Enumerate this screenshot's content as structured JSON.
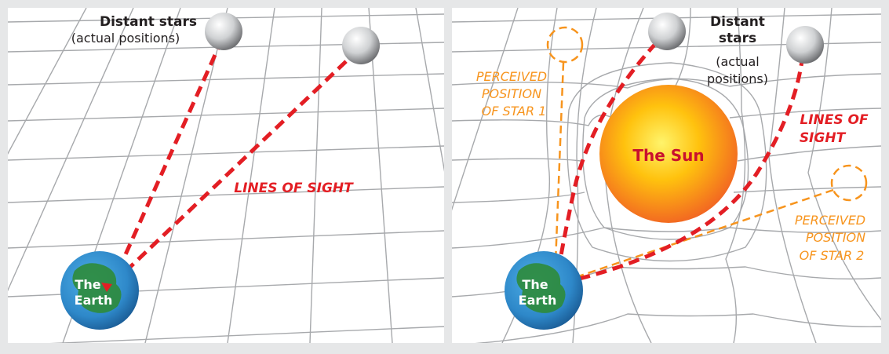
{
  "colors": {
    "background": "#e6e7e8",
    "panel": "#ffffff",
    "grid": "#a7a9ac",
    "line_of_sight": "#e31e24",
    "perceived": "#f7941d",
    "earth": "#2e88c9",
    "land": "#2e8b3a",
    "sun_core": "#ffe23a",
    "sun_edge": "#f26522"
  },
  "left_panel": {
    "stars_label_line1": "Distant stars",
    "stars_label_line2": "(actual positions)",
    "lines_of_sight": "LINES OF SIGHT",
    "earth_line1": "The",
    "earth_line2": "Earth"
  },
  "right_panel": {
    "stars_label_line1": "Distant",
    "stars_label_line2": "stars",
    "stars_label_line3": "(actual",
    "stars_label_line4": "positions)",
    "lines_of_sight_line1": "LINES OF",
    "lines_of_sight_line2": "SIGHT",
    "sun_label": "The Sun",
    "perceived_star1_line1": "PERCEIVED",
    "perceived_star1_line2": "POSITION",
    "perceived_star1_line3": "OF STAR 1",
    "perceived_star2_line1": "PERCEIVED",
    "perceived_star2_line2": "POSITION",
    "perceived_star2_line3": "OF STAR 2",
    "earth_line1": "The",
    "earth_line2": "Earth"
  }
}
